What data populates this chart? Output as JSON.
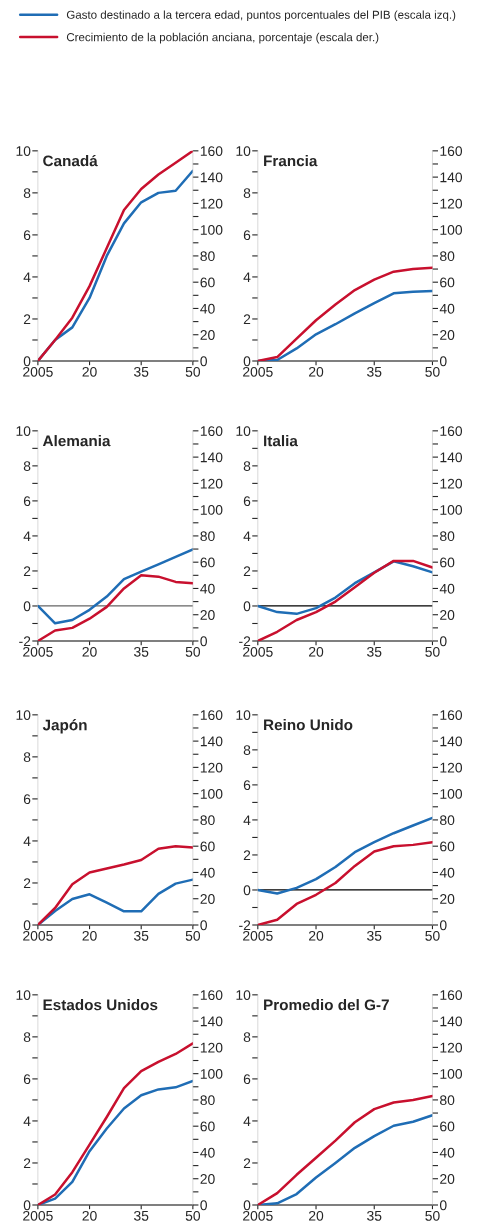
{
  "chart_data": [
    {
      "type": "line",
      "title": "Canadá",
      "legend": "top",
      "x": [
        2005,
        2010,
        2015,
        2020,
        2025,
        2030,
        2035,
        2040,
        2045,
        2050
      ],
      "xlim": [
        2005,
        2050
      ],
      "xticks": [
        2005,
        {
          "value": 2020,
          "label": "20"
        },
        {
          "value": 2035,
          "label": "35"
        },
        {
          "value": 2050,
          "label": "50"
        }
      ],
      "ylim": [
        0,
        10
      ],
      "yticks": [
        0,
        {
          "value": 1,
          "label": null
        },
        2,
        {
          "value": 3,
          "label": null
        },
        4,
        {
          "value": 5,
          "label": null
        },
        6,
        {
          "value": 7,
          "label": null
        },
        8,
        {
          "value": 9,
          "label": null
        },
        10
      ],
      "y2lim": [
        0,
        160
      ],
      "y2ticks": [
        0,
        {
          "value": 10,
          "label": null
        },
        20,
        {
          "value": 30,
          "label": null
        },
        40,
        {
          "value": 50,
          "label": null
        },
        60,
        {
          "value": 70,
          "label": null
        },
        80,
        {
          "value": 90,
          "label": null
        },
        100,
        {
          "value": 110,
          "label": null
        },
        120,
        {
          "value": 130,
          "label": null
        },
        140,
        {
          "value": 150,
          "label": null
        },
        160
      ],
      "series": [
        {
          "name": "Gasto destinado a la tercera edad, puntos porcentuales del PIB (escala izq.)",
          "color": "#1f6db5",
          "values": [
            0,
            1.0,
            1.6,
            3.0,
            5.0,
            6.55,
            7.55,
            8.0,
            8.1,
            9.05
          ]
        },
        {
          "name": "Crecimiento de la población anciana, porcentaje (escala der.)",
          "color": "#c8102e",
          "axis": "y2",
          "values": [
            0,
            16,
            33,
            57,
            86,
            115,
            131,
            142,
            151,
            160
          ]
        }
      ]
    },
    {
      "type": "line",
      "title": "Francia",
      "x": [
        2005,
        2010,
        2015,
        2020,
        2025,
        2030,
        2035,
        2040,
        2045,
        2050
      ],
      "xlim": [
        2005,
        2050
      ],
      "xticks": [
        2005,
        {
          "value": 2020,
          "label": "20"
        },
        {
          "value": 2035,
          "label": "35"
        },
        {
          "value": 2050,
          "label": "50"
        }
      ],
      "ylim": [
        0,
        10
      ],
      "yticks": [
        0,
        {
          "value": 1,
          "label": null
        },
        2,
        {
          "value": 3,
          "label": null
        },
        4,
        {
          "value": 5,
          "label": null
        },
        6,
        {
          "value": 7,
          "label": null
        },
        8,
        {
          "value": 9,
          "label": null
        },
        10
      ],
      "y2lim": [
        0,
        160
      ],
      "y2ticks": [
        0,
        {
          "value": 10,
          "label": null
        },
        20,
        {
          "value": 30,
          "label": null
        },
        40,
        {
          "value": 50,
          "label": null
        },
        60,
        {
          "value": 70,
          "label": null
        },
        80,
        {
          "value": 90,
          "label": null
        },
        100,
        {
          "value": 110,
          "label": null
        },
        120,
        {
          "value": 130,
          "label": null
        },
        140,
        {
          "value": 150,
          "label": null
        },
        160
      ],
      "series": [
        {
          "color": "#1f6db5",
          "values": [
            0,
            0.05,
            0.6,
            1.27,
            1.75,
            2.27,
            2.75,
            3.22,
            3.29,
            3.33
          ]
        },
        {
          "color": "#c8102e",
          "axis": "y2",
          "values": [
            0,
            3,
            17,
            31,
            43,
            54,
            62,
            68,
            70,
            71
          ]
        }
      ]
    },
    {
      "type": "line",
      "title": "Alemania",
      "x": [
        2005,
        2010,
        2015,
        2020,
        2025,
        2030,
        2035,
        2040,
        2045,
        2050
      ],
      "xlim": [
        2005,
        2050
      ],
      "xticks": [
        2005,
        {
          "value": 2020,
          "label": "20"
        },
        {
          "value": 2035,
          "label": "35"
        },
        {
          "value": 2050,
          "label": "50"
        }
      ],
      "ylim": [
        -2,
        10
      ],
      "yticks": [
        -2,
        {
          "value": -1,
          "label": null
        },
        0,
        {
          "value": 1,
          "label": null
        },
        2,
        {
          "value": 3,
          "label": null
        },
        4,
        {
          "value": 5,
          "label": null
        },
        6,
        {
          "value": 7,
          "label": null
        },
        8,
        {
          "value": 9,
          "label": null
        },
        10
      ],
      "y2lim": [
        0,
        160
      ],
      "y2ticks": [
        0,
        {
          "value": 10,
          "label": null
        },
        20,
        {
          "value": 30,
          "label": null
        },
        40,
        {
          "value": 50,
          "label": null
        },
        60,
        {
          "value": 70,
          "label": null
        },
        80,
        {
          "value": 90,
          "label": null
        },
        100,
        {
          "value": 110,
          "label": null
        },
        120,
        {
          "value": 130,
          "label": null
        },
        140,
        {
          "value": 150,
          "label": null
        },
        160
      ],
      "ref_lines": [
        {
          "axis": "y",
          "value": 0,
          "color": "#666666"
        }
      ],
      "series": [
        {
          "color": "#1f6db5",
          "values": [
            0,
            -0.99,
            -0.8,
            -0.22,
            0.54,
            1.53,
            1.96,
            2.38,
            2.8,
            3.23
          ]
        },
        {
          "color": "#c8102e",
          "axis": "y2",
          "values": [
            0,
            8,
            10,
            17,
            26,
            40,
            50,
            49,
            45,
            44
          ]
        }
      ]
    },
    {
      "type": "line",
      "title": "Italia",
      "x": [
        2005,
        2010,
        2015,
        2020,
        2025,
        2030,
        2035,
        2040,
        2045,
        2050
      ],
      "xlim": [
        2005,
        2050
      ],
      "xticks": [
        2005,
        {
          "value": 2020,
          "label": "20"
        },
        {
          "value": 2035,
          "label": "35"
        },
        {
          "value": 2050,
          "label": "50"
        }
      ],
      "ylim": [
        -2,
        10
      ],
      "yticks": [
        -2,
        {
          "value": -1,
          "label": null
        },
        0,
        {
          "value": 1,
          "label": null
        },
        2,
        {
          "value": 3,
          "label": null
        },
        4,
        {
          "value": 5,
          "label": null
        },
        6,
        {
          "value": 7,
          "label": null
        },
        8,
        {
          "value": 9,
          "label": null
        },
        10
      ],
      "y2lim": [
        0,
        160
      ],
      "y2ticks": [
        0,
        {
          "value": 10,
          "label": null
        },
        20,
        {
          "value": 30,
          "label": null
        },
        40,
        {
          "value": 50,
          "label": null
        },
        60,
        {
          "value": 70,
          "label": null
        },
        80,
        {
          "value": 90,
          "label": null
        },
        100,
        {
          "value": 110,
          "label": null
        },
        120,
        {
          "value": 130,
          "label": null
        },
        140,
        {
          "value": 150,
          "label": null
        },
        160
      ],
      "ref_lines": [
        {
          "axis": "y",
          "value": 0,
          "color": "#000000"
        }
      ],
      "series": [
        {
          "color": "#1f6db5",
          "values": [
            0,
            -0.35,
            -0.45,
            -0.12,
            0.48,
            1.3,
            1.92,
            2.55,
            2.27,
            1.92
          ]
        },
        {
          "color": "#c8102e",
          "axis": "y2",
          "values": [
            0,
            7,
            16,
            22,
            30,
            41,
            52,
            61,
            61,
            56
          ]
        }
      ]
    },
    {
      "type": "line",
      "title": "Japón",
      "x": [
        2005,
        2010,
        2015,
        2020,
        2025,
        2030,
        2035,
        2040,
        2045,
        2050
      ],
      "xlim": [
        2005,
        2050
      ],
      "xticks": [
        2005,
        {
          "value": 2020,
          "label": "20"
        },
        {
          "value": 2035,
          "label": "35"
        },
        {
          "value": 2050,
          "label": "50"
        }
      ],
      "ylim": [
        0,
        10
      ],
      "yticks": [
        0,
        {
          "value": 1,
          "label": null
        },
        2,
        {
          "value": 3,
          "label": null
        },
        4,
        {
          "value": 5,
          "label": null
        },
        6,
        {
          "value": 7,
          "label": null
        },
        8,
        {
          "value": 9,
          "label": null
        },
        10
      ],
      "y2lim": [
        0,
        160
      ],
      "y2ticks": [
        0,
        {
          "value": 10,
          "label": null
        },
        20,
        {
          "value": 30,
          "label": null
        },
        40,
        {
          "value": 50,
          "label": null
        },
        60,
        {
          "value": 70,
          "label": null
        },
        80,
        {
          "value": 90,
          "label": null
        },
        100,
        {
          "value": 110,
          "label": null
        },
        120,
        {
          "value": 130,
          "label": null
        },
        140,
        {
          "value": 150,
          "label": null
        },
        160
      ],
      "series": [
        {
          "color": "#1f6db5",
          "values": [
            0,
            0.67,
            1.24,
            1.46,
            1.06,
            0.65,
            0.65,
            1.48,
            1.97,
            2.16
          ]
        },
        {
          "color": "#c8102e",
          "axis": "y2",
          "values": [
            0,
            13,
            31,
            40,
            43,
            46,
            49.5,
            58,
            60,
            59
          ]
        }
      ]
    },
    {
      "type": "line",
      "title": "Reino Unido",
      "x": [
        2005,
        2010,
        2015,
        2020,
        2025,
        2030,
        2035,
        2040,
        2045,
        2050
      ],
      "xlim": [
        2005,
        2050
      ],
      "xticks": [
        2005,
        {
          "value": 2020,
          "label": "20"
        },
        {
          "value": 2035,
          "label": "35"
        },
        {
          "value": 2050,
          "label": "50"
        }
      ],
      "ylim": [
        -2,
        10
      ],
      "yticks": [
        -2,
        {
          "value": -1,
          "label": null
        },
        0,
        {
          "value": 1,
          "label": null
        },
        2,
        {
          "value": 3,
          "label": null
        },
        4,
        {
          "value": 5,
          "label": null
        },
        6,
        {
          "value": 7,
          "label": null
        },
        8,
        {
          "value": 9,
          "label": null
        },
        10
      ],
      "y2lim": [
        0,
        160
      ],
      "y2ticks": [
        0,
        {
          "value": 10,
          "label": null
        },
        20,
        {
          "value": 30,
          "label": null
        },
        40,
        {
          "value": 50,
          "label": null
        },
        60,
        {
          "value": 70,
          "label": null
        },
        80,
        {
          "value": 90,
          "label": null
        },
        100,
        {
          "value": 110,
          "label": null
        },
        120,
        {
          "value": 130,
          "label": null
        },
        140,
        {
          "value": 150,
          "label": null
        },
        160
      ],
      "ref_lines": [
        {
          "axis": "y",
          "value": 0,
          "color": "#000000"
        }
      ],
      "series": [
        {
          "color": "#1f6db5",
          "values": [
            0,
            -0.2,
            0.12,
            0.62,
            1.31,
            2.16,
            2.73,
            3.24,
            3.68,
            4.12
          ]
        },
        {
          "color": "#c8102e",
          "axis": "y2",
          "values": [
            0,
            4,
            16,
            23,
            32,
            45,
            56,
            60,
            61,
            63
          ]
        }
      ]
    },
    {
      "type": "line",
      "title": "Estados Unidos",
      "x": [
        2005,
        2010,
        2015,
        2020,
        2025,
        2030,
        2035,
        2040,
        2045,
        2050
      ],
      "xlim": [
        2005,
        2050
      ],
      "xticks": [
        2005,
        {
          "value": 2020,
          "label": "20"
        },
        {
          "value": 2035,
          "label": "35"
        },
        {
          "value": 2050,
          "label": "50"
        }
      ],
      "ylim": [
        0,
        10
      ],
      "yticks": [
        0,
        {
          "value": 1,
          "label": null
        },
        2,
        {
          "value": 3,
          "label": null
        },
        4,
        {
          "value": 5,
          "label": null
        },
        6,
        {
          "value": 7,
          "label": null
        },
        8,
        {
          "value": 9,
          "label": null
        },
        10
      ],
      "y2lim": [
        0,
        160
      ],
      "y2ticks": [
        0,
        {
          "value": 10,
          "label": null
        },
        20,
        {
          "value": 30,
          "label": null
        },
        40,
        {
          "value": 50,
          "label": null
        },
        60,
        {
          "value": 70,
          "label": null
        },
        80,
        {
          "value": 90,
          "label": null
        },
        100,
        {
          "value": 110,
          "label": null
        },
        120,
        {
          "value": 130,
          "label": null
        },
        140,
        {
          "value": 150,
          "label": null
        },
        160
      ],
      "series": [
        {
          "color": "#1f6db5",
          "values": [
            0,
            0.3,
            1.1,
            2.56,
            3.64,
            4.59,
            5.22,
            5.5,
            5.6,
            5.9
          ]
        },
        {
          "color": "#c8102e",
          "axis": "y2",
          "values": [
            0,
            8,
            25,
            46,
            67,
            89,
            102,
            109,
            115,
            123
          ]
        }
      ]
    },
    {
      "type": "line",
      "title": "Promedio del G-7",
      "x": [
        2005,
        2010,
        2015,
        2020,
        2025,
        2030,
        2035,
        2040,
        2045,
        2050
      ],
      "xlim": [
        2005,
        2050
      ],
      "xticks": [
        2005,
        {
          "value": 2020,
          "label": "20"
        },
        {
          "value": 2035,
          "label": "35"
        },
        {
          "value": 2050,
          "label": "50"
        }
      ],
      "ylim": [
        0,
        10
      ],
      "yticks": [
        0,
        {
          "value": 1,
          "label": null
        },
        2,
        {
          "value": 3,
          "label": null
        },
        4,
        {
          "value": 5,
          "label": null
        },
        6,
        {
          "value": 7,
          "label": null
        },
        8,
        {
          "value": 9,
          "label": null
        },
        10
      ],
      "y2lim": [
        0,
        160
      ],
      "y2ticks": [
        0,
        {
          "value": 10,
          "label": null
        },
        20,
        {
          "value": 30,
          "label": null
        },
        40,
        {
          "value": 50,
          "label": null
        },
        60,
        {
          "value": 70,
          "label": null
        },
        80,
        {
          "value": 90,
          "label": null
        },
        100,
        {
          "value": 110,
          "label": null
        },
        120,
        {
          "value": 130,
          "label": null
        },
        140,
        {
          "value": 150,
          "label": null
        },
        160
      ],
      "series": [
        {
          "color": "#1f6db5",
          "values": [
            0,
            0.08,
            0.52,
            1.31,
            2.0,
            2.72,
            3.28,
            3.77,
            3.96,
            4.27
          ]
        },
        {
          "color": "#c8102e",
          "axis": "y2",
          "values": [
            0,
            9,
            23,
            36,
            49,
            63,
            73,
            78,
            80,
            83
          ]
        }
      ]
    }
  ]
}
